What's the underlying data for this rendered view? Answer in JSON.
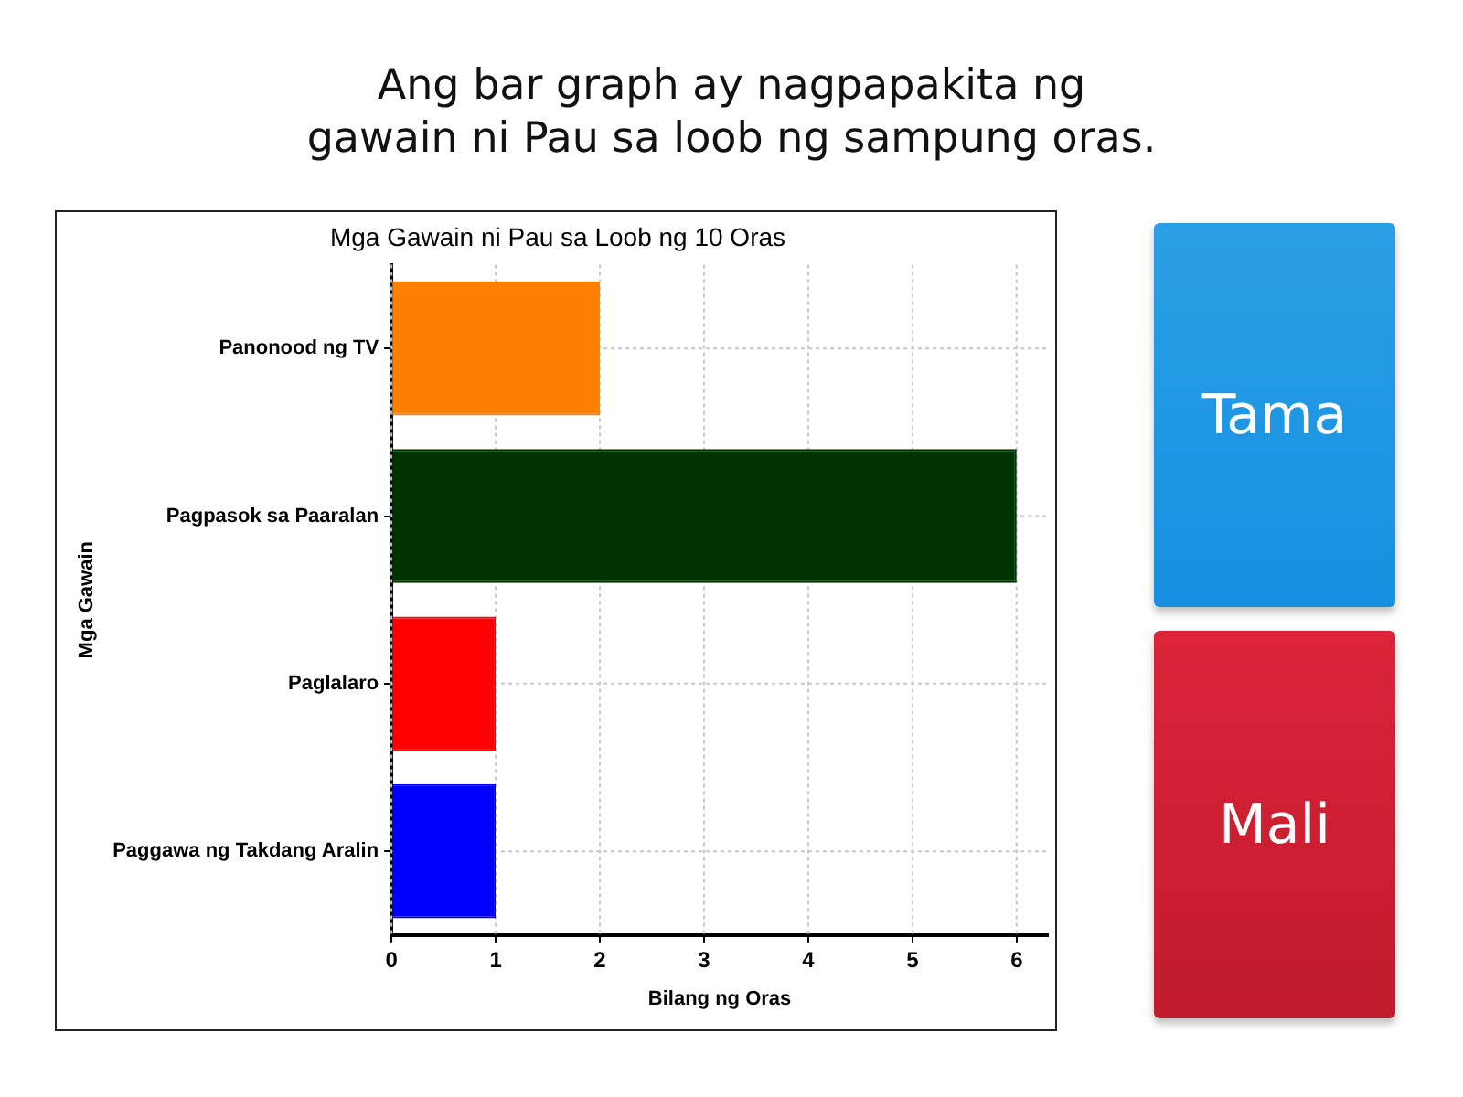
{
  "chart_data": {
    "type": "bar",
    "orientation": "horizontal",
    "title": "Mga Gawain ni Pau sa Loob ng 10 Oras",
    "xlabel": "Bilang ng Oras",
    "ylabel": "Mga Gawain",
    "categories": [
      "Panonood ng TV",
      "Pagpasok sa Paaralan",
      "Paglalaro",
      "Paggawa ng Takdang Aralin"
    ],
    "values": [
      2,
      6,
      1,
      1
    ],
    "colors": [
      "#ff7f00",
      "#003300",
      "#ff0000",
      "#0000ff"
    ],
    "xlim": [
      0,
      6.3
    ],
    "xticks": [
      0,
      1,
      2,
      3,
      4,
      5,
      6
    ],
    "grid": true,
    "annotations": [
      "Ang bar graph ay nagpapakita ng\ngawain ni Pau sa loob ng sampung oras.",
      "Tama",
      "Mali"
    ]
  }
}
